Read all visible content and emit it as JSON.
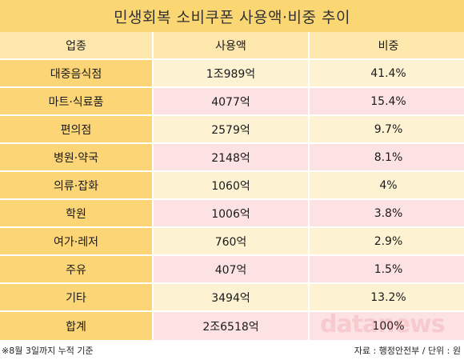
{
  "title": "민생회복 소비쿠폰 사용액·비중 추이",
  "table": {
    "headers": [
      "업종",
      "사용액",
      "비중"
    ],
    "rows": [
      {
        "category": "대중음식점",
        "amount": "1조989억",
        "share": "41.4%"
      },
      {
        "category": "마트·식료품",
        "amount": "4077억",
        "share": "15.4%"
      },
      {
        "category": "편의점",
        "amount": "2579억",
        "share": "9.7%"
      },
      {
        "category": "병원·약국",
        "amount": "2148억",
        "share": "8.1%"
      },
      {
        "category": "의류·잡화",
        "amount": "1060억",
        "share": "4%"
      },
      {
        "category": "학원",
        "amount": "1006억",
        "share": "3.8%"
      },
      {
        "category": "여가·레저",
        "amount": "760억",
        "share": "2.9%"
      },
      {
        "category": "주유",
        "amount": "407억",
        "share": "1.5%"
      },
      {
        "category": "기타",
        "amount": "3494억",
        "share": "13.2%"
      }
    ],
    "total": {
      "category": "합계",
      "amount": "2조6518억",
      "share": "100%"
    }
  },
  "footer": {
    "note": "※8월 3일까지 누적 기준",
    "source": "자료 : 행정안전부 / 단위 : 원"
  },
  "watermark": "datanews",
  "colors": {
    "title_bg": "#fbd774",
    "header_bg": "#fde7ad",
    "category_bg": "#fcd577",
    "row_cream": "#fdf3d3",
    "row_pink": "#fde2e4"
  }
}
